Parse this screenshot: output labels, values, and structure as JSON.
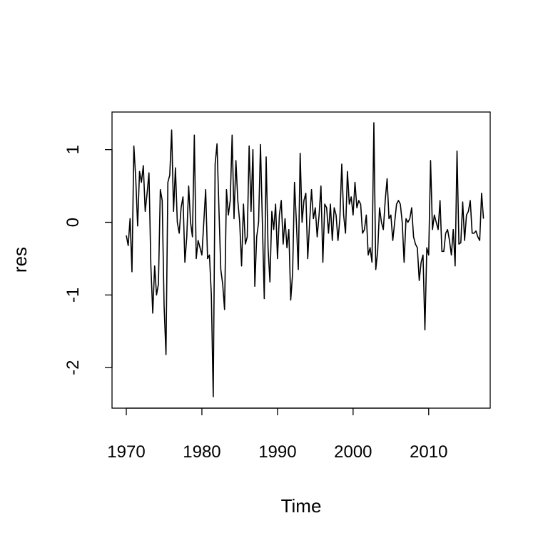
{
  "chart_data": {
    "type": "line",
    "title": "",
    "xlabel": "Time",
    "ylabel": "res",
    "xlim": [
      1970,
      2016.25
    ],
    "ylim": [
      -2.4,
      1.37
    ],
    "x_ticks": [
      1970,
      1980,
      1990,
      2000,
      2010
    ],
    "y_ticks": [
      -2,
      -1,
      0,
      1
    ],
    "x_tick_labels": [
      "1970",
      "1980",
      "1990",
      "2000",
      "2010"
    ],
    "y_tick_labels": [
      "-2",
      "-1",
      "0",
      "1"
    ],
    "grid": false,
    "legend": "none",
    "line_color": "#000000",
    "series": [
      {
        "x_start": 1970,
        "x_step": 0.25,
        "values": [
          -0.18,
          -0.32,
          0.05,
          -0.68,
          1.05,
          0.6,
          -0.05,
          0.7,
          0.55,
          0.78,
          0.15,
          0.4,
          0.68,
          -0.6,
          -1.25,
          -0.6,
          -1.0,
          -0.85,
          0.45,
          0.3,
          -1.15,
          -1.82,
          0.55,
          0.65,
          1.27,
          0.15,
          0.75,
          0.0,
          -0.15,
          0.2,
          0.35,
          -0.55,
          -0.2,
          0.5,
          0.0,
          -0.2,
          1.2,
          -0.5,
          -0.25,
          -0.35,
          -0.45,
          0.0,
          0.45,
          -0.5,
          -0.45,
          -1.0,
          -2.4,
          0.8,
          1.08,
          0.2,
          -0.65,
          -0.85,
          -1.2,
          0.45,
          0.1,
          0.3,
          1.2,
          0.05,
          0.85,
          0.3,
          0.0,
          -0.6,
          0.25,
          -0.3,
          -0.2,
          1.05,
          0.15,
          1.0,
          -0.88,
          -0.2,
          0.0,
          1.07,
          0.0,
          -1.05,
          0.9,
          -0.35,
          -0.82,
          0.15,
          -0.1,
          0.25,
          -0.5,
          0.1,
          0.3,
          -0.3,
          0.05,
          -0.35,
          -0.1,
          -1.07,
          -0.7,
          0.55,
          0.0,
          -0.65,
          0.95,
          0.0,
          0.3,
          0.4,
          -0.5,
          0.0,
          0.45,
          0.05,
          0.2,
          -0.2,
          0.1,
          0.5,
          -0.55,
          0.25,
          0.2,
          -0.15,
          0.25,
          -0.25,
          0.2,
          0.1,
          -0.25,
          0.05,
          0.8,
          0.1,
          -0.15,
          0.7,
          0.25,
          0.35,
          0.1,
          0.55,
          0.2,
          0.3,
          0.25,
          -0.15,
          -0.1,
          0.1,
          -0.45,
          -0.35,
          -0.55,
          1.37,
          -0.65,
          -0.4,
          0.2,
          0.0,
          -0.1,
          0.3,
          0.6,
          0.05,
          0.1,
          -0.25,
          0.0,
          0.25,
          0.3,
          0.25,
          0.0,
          -0.55,
          0.05,
          0.0,
          0.05,
          0.2,
          -0.2,
          -0.3,
          -0.35,
          -0.8,
          -0.55,
          -0.45,
          -1.48,
          -0.35,
          -0.45,
          0.85,
          -0.1,
          0.1,
          0.0,
          -0.1,
          0.3,
          -0.4,
          -0.4,
          -0.15,
          -0.1,
          -0.25,
          -0.45,
          -0.1,
          -0.6,
          0.98,
          -0.3,
          -0.28,
          0.28,
          -0.25,
          0.1,
          0.15,
          0.3,
          -0.15,
          -0.15,
          -0.12,
          -0.2,
          -0.25,
          0.4,
          0.05
        ]
      }
    ]
  }
}
